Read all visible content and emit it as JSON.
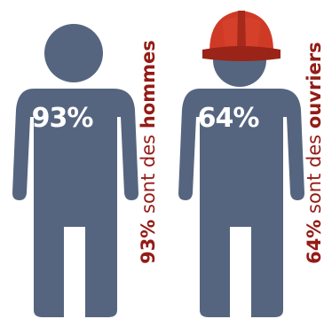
{
  "colors": {
    "figure": "#56657f",
    "accent": "#941b16",
    "helmet": "#cf3a26",
    "helmet_shadow": "#9a2418"
  },
  "figures": [
    {
      "percent_label": "93%",
      "side_text": {
        "percent": "93%",
        "middle": " sont des ",
        "word": "hommes"
      },
      "icon": "person-icon"
    },
    {
      "percent_label": "64%",
      "side_text": {
        "percent": "64%",
        "middle": " sont des ",
        "word": "ouvriers"
      },
      "icon": "worker-with-hard-hat-icon"
    }
  ]
}
